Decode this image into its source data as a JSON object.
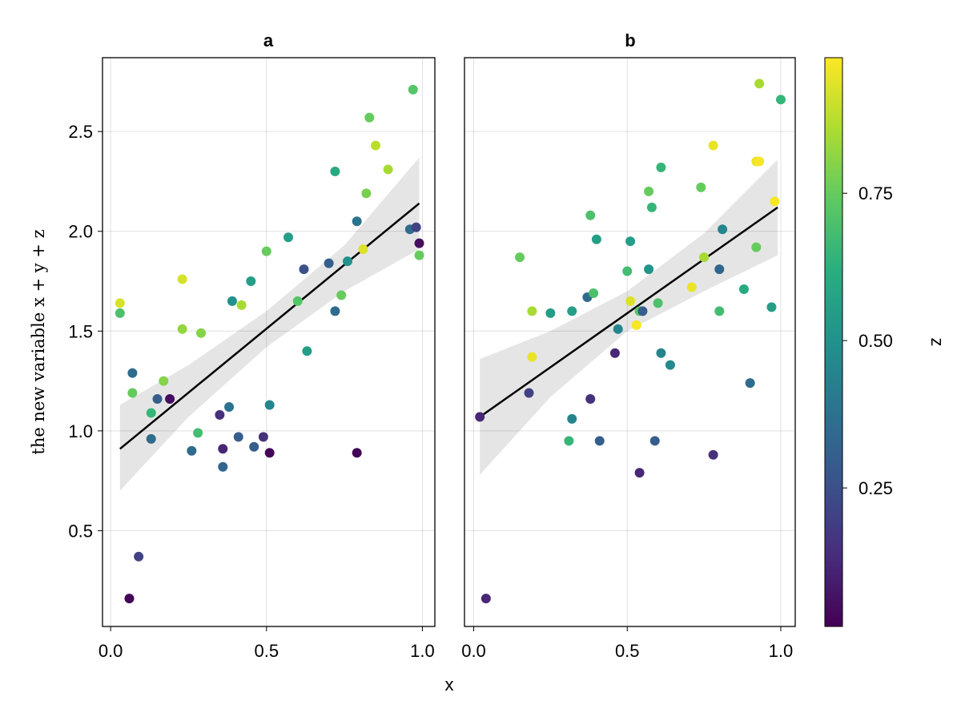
{
  "chart_data": {
    "type": "scatter",
    "xlabel": "x",
    "ylabel": "the new variable x + y + z",
    "ylim": [
      0.02,
      2.87
    ],
    "yticks": [
      0.5,
      1.0,
      1.5,
      2.0,
      2.5
    ],
    "ytick_labels": [
      "0.5",
      "1.0",
      "1.5",
      "2.0",
      "2.5"
    ],
    "xticks": [
      0.0,
      0.5,
      1.0
    ],
    "xtick_labels": [
      "0.0",
      "0.5",
      "1.0"
    ],
    "grid": true,
    "colorbar": {
      "label": "z",
      "range": [
        0.015,
        0.98
      ],
      "ticks": [
        0.25,
        0.5,
        0.75
      ],
      "tick_labels": [
        "0.25",
        "0.50",
        "0.75"
      ],
      "colormap": "viridis"
    },
    "panels": [
      {
        "title": "a",
        "xlim": [
          -0.026,
          1.04
        ],
        "fit_line": {
          "x": [
            0.03,
            0.99
          ],
          "y": [
            0.91,
            2.14
          ]
        },
        "band": {
          "x": [
            0.03,
            0.25,
            0.5,
            0.75,
            0.99
          ],
          "lower": [
            0.7,
            1.07,
            1.42,
            1.7,
            1.91
          ],
          "upper": [
            1.13,
            1.33,
            1.6,
            1.93,
            2.37
          ]
        },
        "points": [
          [
            0.03,
            1.64,
            0.92
          ],
          [
            0.03,
            1.59,
            0.7
          ],
          [
            0.07,
            1.29,
            0.35
          ],
          [
            0.07,
            1.19,
            0.75
          ],
          [
            0.13,
            1.09,
            0.65
          ],
          [
            0.13,
            0.96,
            0.35
          ],
          [
            0.15,
            1.16,
            0.3
          ],
          [
            0.17,
            1.25,
            0.8
          ],
          [
            0.19,
            1.16,
            0.05
          ],
          [
            0.23,
            1.76,
            0.92
          ],
          [
            0.23,
            1.51,
            0.82
          ],
          [
            0.29,
            1.49,
            0.8
          ],
          [
            0.28,
            0.99,
            0.68
          ],
          [
            0.26,
            0.9,
            0.35
          ],
          [
            0.35,
            1.08,
            0.15
          ],
          [
            0.36,
            0.91,
            0.12
          ],
          [
            0.36,
            0.82,
            0.33
          ],
          [
            0.38,
            1.12,
            0.38
          ],
          [
            0.39,
            1.65,
            0.5
          ],
          [
            0.41,
            0.97,
            0.3
          ],
          [
            0.42,
            1.63,
            0.85
          ],
          [
            0.45,
            1.75,
            0.55
          ],
          [
            0.46,
            0.92,
            0.3
          ],
          [
            0.49,
            0.97,
            0.15
          ],
          [
            0.5,
            1.9,
            0.75
          ],
          [
            0.51,
            1.13,
            0.45
          ],
          [
            0.51,
            0.89,
            0.03
          ],
          [
            0.57,
            1.97,
            0.55
          ],
          [
            0.6,
            1.65,
            0.72
          ],
          [
            0.62,
            1.81,
            0.25
          ],
          [
            0.63,
            1.4,
            0.55
          ],
          [
            0.7,
            1.84,
            0.3
          ],
          [
            0.72,
            2.3,
            0.6
          ],
          [
            0.72,
            1.6,
            0.35
          ],
          [
            0.74,
            1.68,
            0.75
          ],
          [
            0.76,
            1.85,
            0.5
          ],
          [
            0.79,
            0.89,
            0.02
          ],
          [
            0.79,
            2.05,
            0.38
          ],
          [
            0.81,
            1.91,
            0.93
          ],
          [
            0.82,
            2.19,
            0.78
          ],
          [
            0.83,
            2.57,
            0.75
          ],
          [
            0.85,
            2.43,
            0.88
          ],
          [
            0.89,
            2.31,
            0.85
          ],
          [
            0.96,
            2.01,
            0.35
          ],
          [
            0.98,
            2.02,
            0.2
          ],
          [
            0.99,
            1.94,
            0.05
          ],
          [
            0.99,
            1.88,
            0.75
          ],
          [
            0.97,
            2.71,
            0.72
          ],
          [
            0.06,
            0.16,
            0.02
          ],
          [
            0.09,
            0.37,
            0.2
          ]
        ]
      },
      {
        "title": "b",
        "xlim": [
          -0.03,
          1.047
        ],
        "fit_line": {
          "x": [
            0.02,
            0.99
          ],
          "y": [
            1.07,
            2.12
          ]
        },
        "band": {
          "x": [
            0.02,
            0.25,
            0.5,
            0.75,
            0.99
          ],
          "lower": [
            0.78,
            1.17,
            1.5,
            1.7,
            1.88
          ],
          "upper": [
            1.36,
            1.5,
            1.7,
            1.99,
            2.36
          ]
        },
        "points": [
          [
            0.02,
            1.07,
            0.12
          ],
          [
            0.04,
            0.16,
            0.12
          ],
          [
            0.15,
            1.87,
            0.75
          ],
          [
            0.19,
            1.6,
            0.85
          ],
          [
            0.19,
            1.37,
            0.95
          ],
          [
            0.18,
            1.19,
            0.2
          ],
          [
            0.25,
            1.59,
            0.55
          ],
          [
            0.31,
            0.95,
            0.65
          ],
          [
            0.32,
            1.06,
            0.45
          ],
          [
            0.32,
            1.6,
            0.55
          ],
          [
            0.37,
            1.67,
            0.35
          ],
          [
            0.38,
            2.08,
            0.7
          ],
          [
            0.39,
            1.69,
            0.7
          ],
          [
            0.38,
            1.16,
            0.15
          ],
          [
            0.4,
            1.96,
            0.55
          ],
          [
            0.41,
            0.95,
            0.3
          ],
          [
            0.46,
            1.39,
            0.12
          ],
          [
            0.47,
            1.51,
            0.45
          ],
          [
            0.5,
            1.8,
            0.68
          ],
          [
            0.51,
            1.95,
            0.55
          ],
          [
            0.51,
            1.65,
            0.93
          ],
          [
            0.53,
            1.53,
            0.97
          ],
          [
            0.54,
            1.6,
            0.72
          ],
          [
            0.54,
            0.79,
            0.12
          ],
          [
            0.55,
            1.6,
            0.3
          ],
          [
            0.57,
            1.81,
            0.52
          ],
          [
            0.57,
            2.2,
            0.75
          ],
          [
            0.58,
            2.12,
            0.65
          ],
          [
            0.59,
            0.95,
            0.3
          ],
          [
            0.6,
            1.64,
            0.7
          ],
          [
            0.61,
            2.32,
            0.65
          ],
          [
            0.61,
            1.39,
            0.45
          ],
          [
            0.64,
            1.33,
            0.47
          ],
          [
            0.71,
            1.72,
            0.95
          ],
          [
            0.74,
            2.22,
            0.75
          ],
          [
            0.75,
            1.87,
            0.85
          ],
          [
            0.78,
            2.43,
            0.95
          ],
          [
            0.78,
            0.88,
            0.15
          ],
          [
            0.8,
            1.81,
            0.33
          ],
          [
            0.8,
            1.6,
            0.68
          ],
          [
            0.81,
            2.01,
            0.45
          ],
          [
            0.88,
            1.71,
            0.6
          ],
          [
            0.9,
            1.24,
            0.35
          ],
          [
            0.92,
            2.35,
            0.95
          ],
          [
            0.93,
            2.35,
            0.97
          ],
          [
            0.92,
            1.92,
            0.75
          ],
          [
            0.93,
            2.74,
            0.85
          ],
          [
            0.97,
            1.62,
            0.55
          ],
          [
            0.98,
            2.15,
            0.97
          ],
          [
            1.0,
            2.66,
            0.65
          ]
        ]
      }
    ]
  }
}
